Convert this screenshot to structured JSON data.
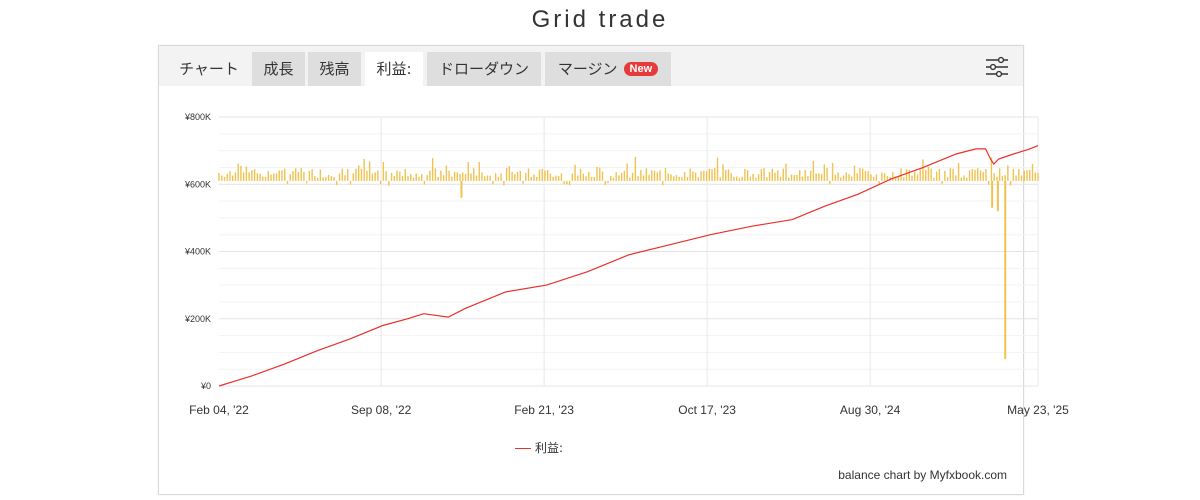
{
  "page": {
    "title": "Grid trade"
  },
  "tabs": [
    {
      "label": "チャート",
      "state": "plain"
    },
    {
      "label": "成長",
      "state": "inactive"
    },
    {
      "label": "残高",
      "state": "inactive"
    },
    {
      "label": "利益:",
      "state": "active"
    },
    {
      "label": "ドローダウン",
      "state": "inactive"
    },
    {
      "label": "マージン",
      "state": "inactive",
      "badge": "New"
    }
  ],
  "toolbar": {
    "settings_icon": "sliders-icon"
  },
  "legend": {
    "label": "利益:"
  },
  "credit": "balance chart by Myfxbook.com",
  "colors": {
    "line": "#e8312a",
    "bars": "#f0c24f",
    "grid": "#e6e6e6",
    "badge": "#e53b3b"
  },
  "chart_data": {
    "type": "line",
    "title": "",
    "xlabel": "",
    "ylabel": "",
    "ylim": [
      0,
      800000
    ],
    "yticks": [
      0,
      200000,
      400000,
      600000,
      800000
    ],
    "ytick_labels": [
      "¥0",
      "¥200K",
      "¥400K",
      "¥600K",
      "¥800K"
    ],
    "xtick_labels": [
      "Feb 04, '22",
      "Sep 08, '22",
      "Feb 21, '23",
      "Oct 17, '23",
      "Aug 30, '24",
      "May 23, '25"
    ],
    "grid": true,
    "legend_position": "bottom",
    "series": [
      {
        "name": "利益:",
        "kind": "line",
        "color": "#e8312a",
        "x": [
          0,
          0.04,
          0.08,
          0.12,
          0.16,
          0.2,
          0.23,
          0.25,
          0.28,
          0.3,
          0.32,
          0.35,
          0.4,
          0.45,
          0.5,
          0.55,
          0.6,
          0.65,
          0.7,
          0.74,
          0.78,
          0.82,
          0.86,
          0.9,
          0.924,
          0.936,
          0.942,
          0.946,
          0.952,
          0.97,
          0.99,
          1.0
        ],
        "values": [
          0,
          30000,
          65000,
          105000,
          140000,
          180000,
          200000,
          215000,
          205000,
          230000,
          250000,
          280000,
          300000,
          340000,
          390000,
          420000,
          450000,
          475000,
          495000,
          535000,
          570000,
          615000,
          650000,
          690000,
          705000,
          705000,
          675000,
          660000,
          675000,
          690000,
          705000,
          715000
        ]
      },
      {
        "name": "",
        "kind": "bar",
        "color": "#f0c24f",
        "baseline": 610000,
        "note": "daily profit bars drawn around the ¥600K level",
        "spikes": [
          {
            "pos": 0.296,
            "value": 560000
          },
          {
            "pos": 0.944,
            "value": 530000
          },
          {
            "pos": 0.951,
            "value": 520000
          },
          {
            "pos": 0.96,
            "value": 80000
          }
        ]
      }
    ]
  }
}
